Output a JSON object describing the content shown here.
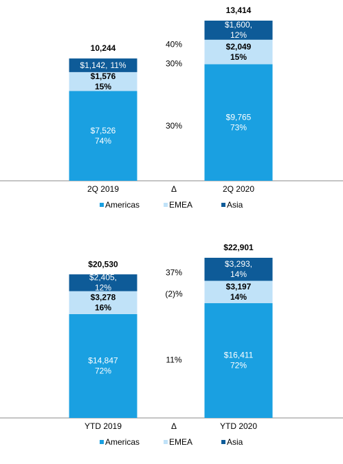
{
  "chart_data": [
    {
      "type": "stacked_bar",
      "categories": [
        "2Q 2019",
        "2Q 2020"
      ],
      "delta_header": "Δ",
      "series": [
        {
          "name": "Americas",
          "color": "#1aa0e1",
          "values": [
            7526,
            9765
          ],
          "value_labels": [
            "$7,526",
            "$9,765"
          ],
          "shares": [
            74,
            73
          ],
          "share_labels": [
            "74%",
            "73%"
          ],
          "delta": 30,
          "delta_label": "30%"
        },
        {
          "name": "EMEA",
          "color": "#c0e2f8",
          "values": [
            1576,
            2049
          ],
          "value_labels": [
            "$1,576",
            "$2,049"
          ],
          "shares": [
            15,
            15
          ],
          "share_labels": [
            "15%",
            "15%"
          ],
          "delta": 30,
          "delta_label": "30%"
        },
        {
          "name": "Asia",
          "color": "#0e5b98",
          "values": [
            1142,
            1600
          ],
          "value_labels": [
            "$1,142,",
            "$1,600,"
          ],
          "shares": [
            11,
            12
          ],
          "share_labels": [
            "11%",
            "12%"
          ],
          "delta": 40,
          "delta_label": "40%"
        }
      ],
      "totals": [
        10244,
        13414
      ],
      "total_labels": [
        "10,244",
        "13,414"
      ]
    },
    {
      "type": "stacked_bar",
      "categories": [
        "YTD 2019",
        "YTD 2020"
      ],
      "delta_header": "Δ",
      "series": [
        {
          "name": "Americas",
          "color": "#1aa0e1",
          "values": [
            14847,
            16411
          ],
          "value_labels": [
            "$14,847",
            "$16,411"
          ],
          "shares": [
            72,
            72
          ],
          "share_labels": [
            "72%",
            "72%"
          ],
          "delta": 11,
          "delta_label": "11%"
        },
        {
          "name": "EMEA",
          "color": "#c0e2f8",
          "values": [
            3278,
            3197
          ],
          "value_labels": [
            "$3,278",
            "$3,197"
          ],
          "shares": [
            16,
            14
          ],
          "share_labels": [
            "16%",
            "14%"
          ],
          "delta": -2,
          "delta_label": "(2)%"
        },
        {
          "name": "Asia",
          "color": "#0e5b98",
          "values": [
            2405,
            3293
          ],
          "value_labels": [
            "$2,405,",
            "$3,293,"
          ],
          "shares": [
            12,
            14
          ],
          "share_labels": [
            "12%",
            "14%"
          ],
          "delta": 37,
          "delta_label": "37%"
        }
      ],
      "totals": [
        20530,
        22901
      ],
      "total_labels": [
        "$20,530",
        "$22,901"
      ]
    }
  ]
}
